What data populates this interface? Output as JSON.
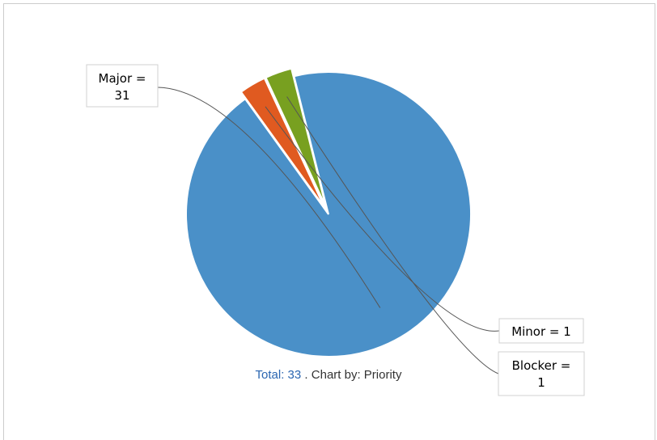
{
  "chart_data": {
    "type": "pie",
    "categories": [
      "Major",
      "Minor",
      "Blocker"
    ],
    "values": [
      31,
      1,
      1
    ],
    "colors": [
      "#4a90c8",
      "#e05a20",
      "#78a020"
    ],
    "labels": [
      "Major = 31",
      "Minor = 1",
      "Blocker = 1"
    ],
    "legend": "none"
  },
  "footer": {
    "total_text": "Total: 33",
    "separator": " . ",
    "chart_by_text": "Chart by: Priority"
  }
}
